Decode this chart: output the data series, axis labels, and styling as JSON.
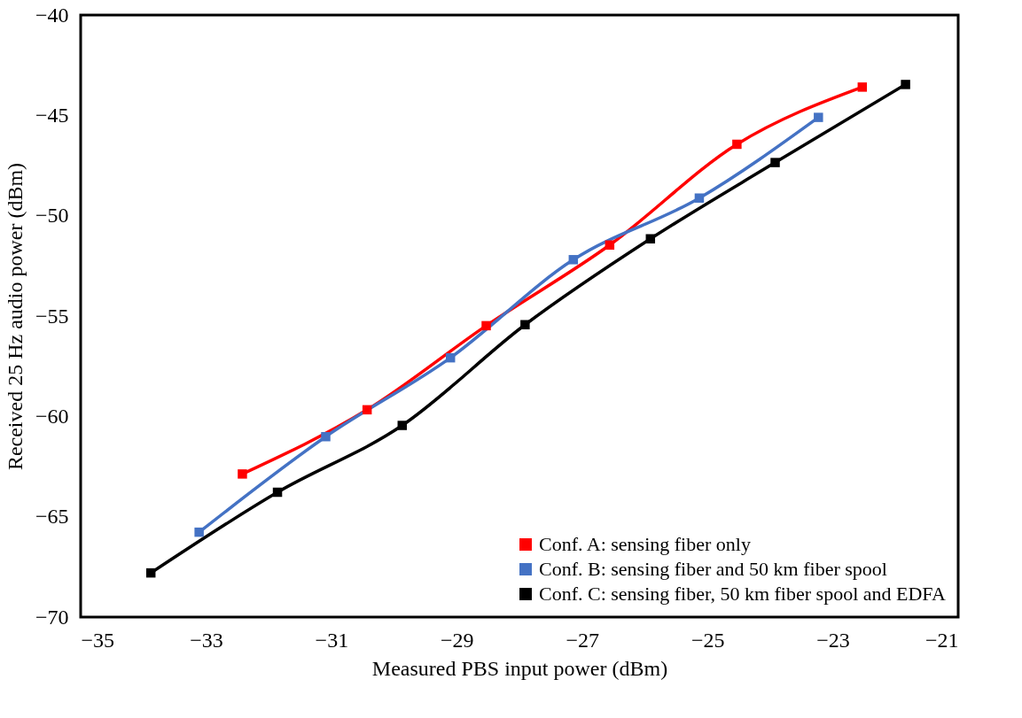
{
  "chart_data": {
    "type": "line",
    "xlabel": "Measured PBS input power  (dBm)",
    "ylabel": "Received 25 Hz audio power (dBm)",
    "xlim": [
      -35,
      -21
    ],
    "xticks": [
      -35,
      -33,
      -31,
      -29,
      -27,
      -25,
      -23,
      -21
    ],
    "ylim": [
      -70,
      -40
    ],
    "yticks": [
      -70,
      -65,
      -60,
      -55,
      -50,
      -45,
      -40
    ],
    "grid": false,
    "legend": "bottom right",
    "marker": "square",
    "line_style": "solid",
    "series": [
      {
        "name": "Conf. A: sensing fiber only",
        "color": "#ff0000",
        "x": [
          -32.42,
          -30.43,
          -28.53,
          -26.56,
          -24.53,
          -22.53
        ],
        "values": [
          -62.87,
          -59.67,
          -55.48,
          -51.46,
          -46.44,
          -43.59
        ]
      },
      {
        "name": "Conf. B: sensing fiber and 50 km fiber spool",
        "color": "#4472c4",
        "x": [
          -33.11,
          -31.09,
          -29.1,
          -27.14,
          -25.13,
          -23.23
        ],
        "values": [
          -65.77,
          -61.01,
          -57.08,
          -52.19,
          -49.12,
          -45.1
        ]
      },
      {
        "name": "Conf. C: sensing fiber, 50 km fiber spool and EDFA",
        "color": "#000000",
        "x": [
          -33.88,
          -31.86,
          -29.87,
          -27.91,
          -25.91,
          -23.92,
          -21.84
        ],
        "values": [
          -67.8,
          -63.78,
          -60.45,
          -55.43,
          -51.15,
          -47.35,
          -43.46
        ]
      }
    ]
  }
}
